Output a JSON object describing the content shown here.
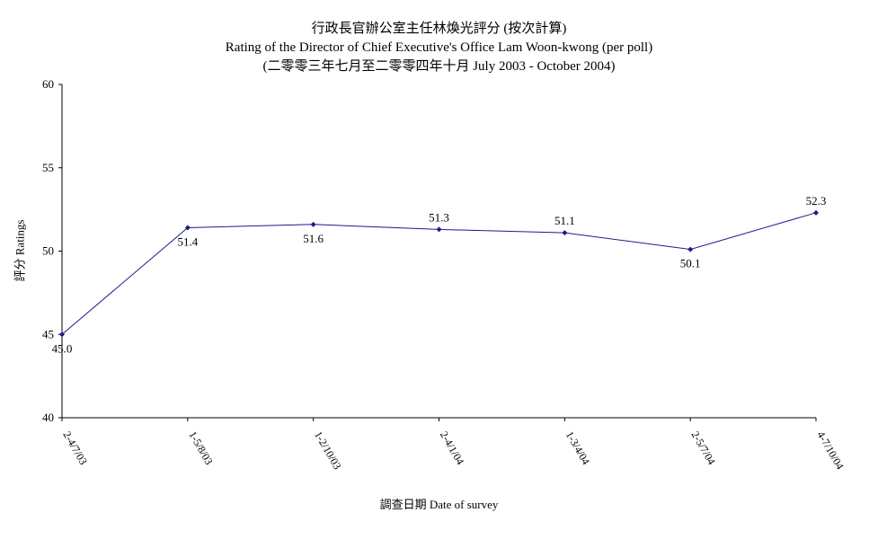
{
  "chart_data": {
    "type": "line",
    "title": "行政長官辦公室主任林煥光評分 (按次計算)",
    "subtitle": "Rating of the Director of Chief Executive's Office Lam Woon-kwong  (per poll)",
    "subtitle2": "(二零零三年七月至二零零四年十月 July 2003 - October 2004)",
    "xlabel": "調查日期 Date of survey",
    "ylabel": "評分 Ratings",
    "ylim": [
      40,
      60
    ],
    "yticks": [
      40,
      45,
      50,
      55,
      60
    ],
    "categories": [
      "2-4/7/03",
      "1-5/8/03",
      "1-2/10/03",
      "2-4/1/04",
      "1-3/4/04",
      "2-5/7/04",
      "4-7/10/04"
    ],
    "series": [
      {
        "values": [
          45.0,
          51.4,
          51.6,
          51.3,
          51.1,
          50.1,
          52.3
        ],
        "labels": [
          "45.0",
          "51.4",
          "51.6",
          "51.3",
          "51.1",
          "50.1",
          "52.3"
        ],
        "label_positions": [
          "below",
          "below",
          "below",
          "above",
          "above",
          "below",
          "above"
        ]
      }
    ],
    "line_color": "#1b1b8c",
    "grid": false,
    "legend": "none"
  }
}
